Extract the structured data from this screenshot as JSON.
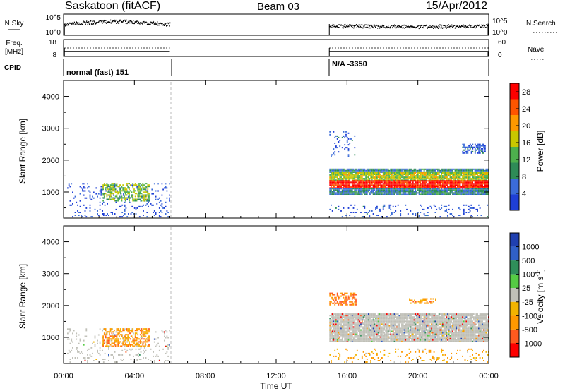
{
  "header": {
    "radar": "Saskatoon (fitACF)",
    "beam": "Beam 03",
    "date": "15/Apr/2012"
  },
  "panels": {
    "nsky_label": "N.Sky",
    "nsky_ticks": [
      "10^5",
      "10^0"
    ],
    "nsearch_label": "N.Search",
    "nsearch_ticks": [
      "10^5",
      "10^0"
    ],
    "freq_label_1": "Freq.",
    "freq_label_2": "[MHz]",
    "freq_ticks": [
      "18",
      "8"
    ],
    "nave_label": "Nave",
    "nave_ticks": [
      "60",
      "0"
    ],
    "cpid_label": "CPID",
    "cpid_segment_1": "normal (fast) 151",
    "cpid_segment_2": "N/A -3350"
  },
  "colors": {
    "power": [
      "#1f3fd6",
      "#3b6bd8",
      "#2e8b57",
      "#4db04d",
      "#c8c800",
      "#ff9900",
      "#ff5500",
      "#ff0000"
    ],
    "velocity": [
      "#ff0000",
      "#ff5a1e",
      "#ff9900",
      "#f2b400",
      "#c0c0b8",
      "#55cc44",
      "#2f8f5a",
      "#3060c8",
      "#2040b0"
    ]
  },
  "chart_data": [
    {
      "type": "heatmap",
      "name": "power",
      "xlabel": "Time UT",
      "ylabel": "Slant Range [km]",
      "xticks": [
        "00:00",
        "04:00",
        "08:00",
        "12:00",
        "16:00",
        "20:00",
        "00:00"
      ],
      "yticks": [
        "1000",
        "2000",
        "3000",
        "4000"
      ],
      "xlim": [
        0,
        24
      ],
      "ylim": [
        180,
        4500
      ],
      "colorbar_label": "Power [dB]",
      "colorbar_ticks": [
        "4",
        "8",
        "12",
        "16",
        "20",
        "24",
        "28"
      ],
      "colorbar_range": [
        0,
        30
      ],
      "data_gaps_hours": [
        [
          6,
          15
        ]
      ],
      "bands": [
        {
          "t0": 0.2,
          "t1": 6.0,
          "r0": 200,
          "r1": 1250,
          "level": 3,
          "density": "sparse"
        },
        {
          "t0": 2.2,
          "t1": 4.8,
          "r0": 700,
          "r1": 1250,
          "level": 14,
          "density": "patchy"
        },
        {
          "t0": 15.0,
          "t1": 24.0,
          "r0": 1600,
          "r1": 1700,
          "level": 8,
          "density": "dense"
        },
        {
          "t0": 15.0,
          "t1": 24.0,
          "r0": 1350,
          "r1": 1600,
          "level": 16,
          "density": "dense"
        },
        {
          "t0": 15.0,
          "t1": 24.0,
          "r0": 1100,
          "r1": 1350,
          "level": 28,
          "density": "dense"
        },
        {
          "t0": 15.0,
          "t1": 24.0,
          "r0": 900,
          "r1": 1100,
          "level": 8,
          "density": "dense"
        },
        {
          "t0": 15.0,
          "t1": 24.0,
          "r0": 200,
          "r1": 600,
          "level": 4,
          "density": "sparse"
        },
        {
          "t0": 15.0,
          "t1": 16.5,
          "r0": 2100,
          "r1": 2900,
          "level": 4,
          "density": "sparse"
        },
        {
          "t0": 22.5,
          "t1": 23.8,
          "r0": 2200,
          "r1": 2500,
          "level": 5,
          "density": "patchy"
        }
      ]
    },
    {
      "type": "heatmap",
      "name": "velocity",
      "xlabel": "Time UT",
      "ylabel": "Slant Range [km]",
      "xticks": [
        "00:00",
        "04:00",
        "08:00",
        "12:00",
        "16:00",
        "20:00",
        "00:00"
      ],
      "yticks": [
        "1000",
        "2000",
        "3000",
        "4000"
      ],
      "xlim": [
        0,
        24
      ],
      "ylim": [
        180,
        4500
      ],
      "colorbar_label": "Velocity [m s^-1]",
      "colorbar_ticks": [
        "1000",
        "500",
        "100",
        "25",
        "-25",
        "-100",
        "-500",
        "-1000"
      ],
      "data_gaps_hours": [
        [
          6,
          15
        ]
      ],
      "bands": [
        {
          "t0": 0.2,
          "t1": 6.0,
          "r0": 200,
          "r1": 1250,
          "level": 0,
          "density": "sparse"
        },
        {
          "t0": 2.2,
          "t1": 4.8,
          "r0": 700,
          "r1": 1250,
          "level": -200,
          "density": "patchy"
        },
        {
          "t0": 15.0,
          "t1": 24.0,
          "r0": 850,
          "r1": 1750,
          "level": 0,
          "density": "dense"
        },
        {
          "t0": 15.0,
          "t1": 24.0,
          "r0": 200,
          "r1": 650,
          "level": -150,
          "density": "sparse"
        },
        {
          "t0": 15.0,
          "t1": 16.5,
          "r0": 2000,
          "r1": 2400,
          "level": -300,
          "density": "patchy"
        },
        {
          "t0": 19.5,
          "t1": 21.0,
          "r0": 2050,
          "r1": 2200,
          "level": -200,
          "density": "patchy"
        }
      ]
    }
  ]
}
